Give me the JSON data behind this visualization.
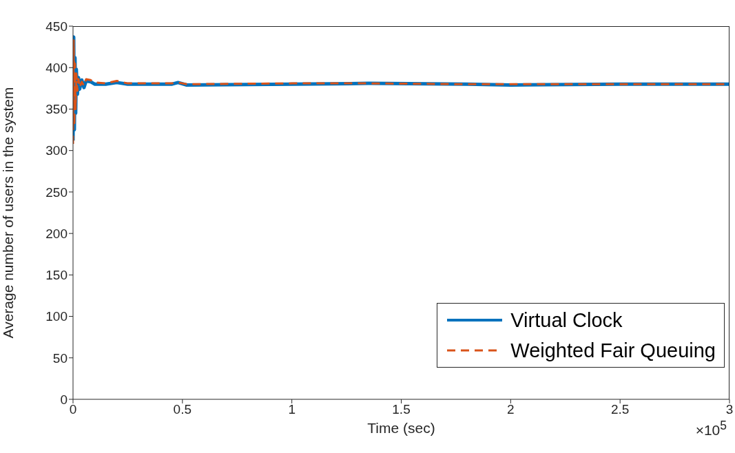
{
  "chart_data": {
    "type": "line",
    "xlabel": "Time (sec)",
    "ylabel": "Average number of users in the system",
    "annotations": [
      "×10$^{5}$"
    ],
    "xlim": [
      0,
      3
    ],
    "xticks": [
      0,
      0.5,
      1,
      1.5,
      2,
      2.5,
      3
    ],
    "ylim": [
      0,
      450
    ],
    "yticks": [
      0,
      50,
      100,
      150,
      200,
      250,
      300,
      350,
      400,
      450
    ],
    "legend": "bottom right",
    "marker": "none",
    "series": [
      {
        "name": "Virtual Clock",
        "color": "#0072bd",
        "line_style": "solid",
        "x": [
          0,
          0.003,
          0.006,
          0.009,
          0.012,
          0.015,
          0.02,
          0.025,
          0.03,
          0.04,
          0.05,
          0.06,
          0.08,
          0.1,
          0.15,
          0.2,
          0.25,
          0.3,
          0.45,
          0.48,
          0.52,
          1,
          1.35,
          1.8,
          2,
          2.5,
          3
        ],
        "values": [
          312,
          437,
          325,
          412,
          345,
          398,
          368,
          388,
          374,
          385,
          376,
          384,
          383,
          380,
          380,
          382,
          380,
          380,
          380,
          382,
          379,
          380,
          381,
          380,
          379,
          380,
          380
        ]
      },
      {
        "name": "Weighted Fair Queuing",
        "color": "#d95319",
        "line_style": "dashed",
        "x": [
          0,
          0.003,
          0.006,
          0.009,
          0.012,
          0.015,
          0.02,
          0.025,
          0.03,
          0.04,
          0.05,
          0.06,
          0.08,
          0.1,
          0.15,
          0.2,
          0.25,
          0.3,
          0.45,
          0.48,
          0.52,
          1,
          1.35,
          1.8,
          2,
          2.5,
          3
        ],
        "values": [
          308,
          433,
          330,
          405,
          350,
          393,
          372,
          386,
          376,
          383,
          378,
          386,
          385,
          382,
          381,
          384,
          381,
          381,
          381,
          382,
          380,
          381,
          381,
          380,
          380,
          380,
          380
        ]
      }
    ]
  }
}
